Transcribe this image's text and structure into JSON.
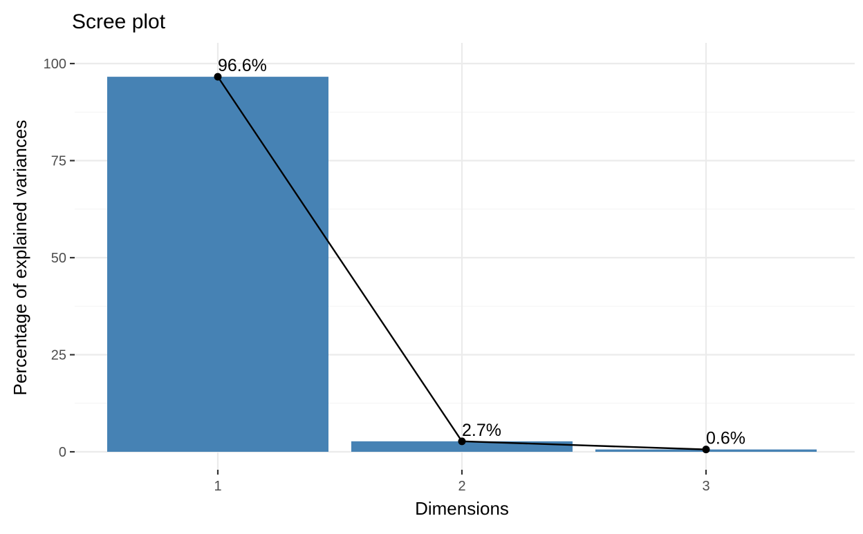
{
  "chart_data": {
    "type": "bar",
    "title": "Scree plot",
    "xlabel": "Dimensions",
    "ylabel": "Percentage of explained variances",
    "categories": [
      "1",
      "2",
      "3"
    ],
    "values": [
      96.6,
      2.7,
      0.6
    ],
    "value_labels": [
      "96.6%",
      "2.7%",
      "0.6%"
    ],
    "ylim": [
      0,
      100
    ],
    "y_ticks": [
      0,
      25,
      50,
      75,
      100
    ],
    "y_tick_labels": [
      "0",
      "25",
      "50",
      "75",
      "100"
    ],
    "overlay": "line",
    "grid": true,
    "legend": "none",
    "colors": {
      "bar": "#4682B4",
      "line": "#000000",
      "point": "#000000",
      "grid_major": "#ebebeb",
      "grid_minor": "#f3f3f3",
      "tick_label": "#4d4d4d"
    }
  }
}
